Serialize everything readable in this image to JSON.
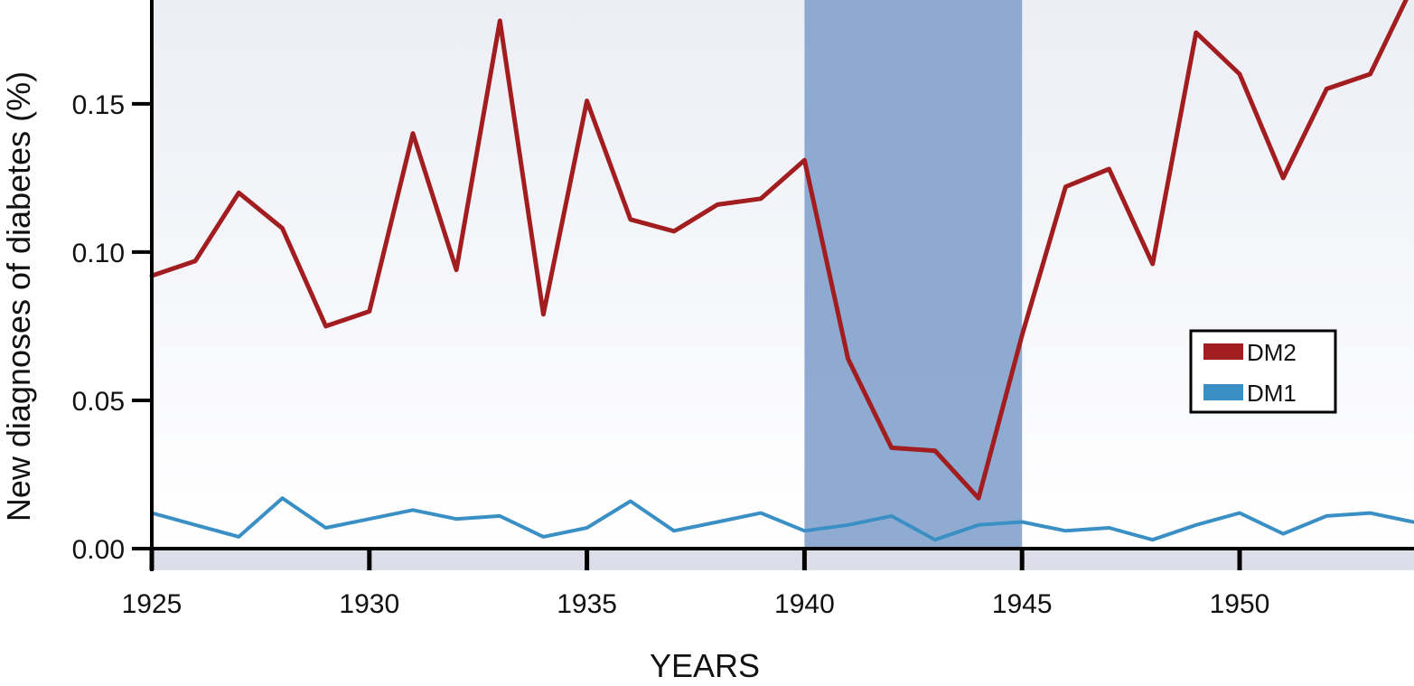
{
  "chart_data": {
    "type": "line",
    "xlabel": "YEARS",
    "ylabel": "New diagnoses of diabetes (%)",
    "xlim": [
      1925,
      1954
    ],
    "ylim": [
      0.0,
      0.185
    ],
    "x_ticks": [
      1925,
      1930,
      1935,
      1940,
      1945,
      1950
    ],
    "x_tick_labels": [
      "1925",
      "1930",
      "1935",
      "1940",
      "1945",
      "1950"
    ],
    "y_ticks": [
      0.0,
      0.05,
      0.1,
      0.15
    ],
    "y_tick_labels": [
      "0.00",
      "0.05",
      "0.10",
      "0.15"
    ],
    "grid": false,
    "legend_position": "right",
    "highlight_region": {
      "x_start": 1940,
      "x_end": 1945,
      "color": "#7c9cc9"
    },
    "series": [
      {
        "name": "DM2",
        "color": "#a21d1f",
        "x": [
          1925,
          1926,
          1927,
          1928,
          1929,
          1930,
          1931,
          1932,
          1933,
          1934,
          1935,
          1936,
          1937,
          1938,
          1939,
          1940,
          1941,
          1942,
          1943,
          1944,
          1945,
          1946,
          1947,
          1948,
          1949,
          1950,
          1951,
          1952,
          1953,
          1954
        ],
        "values": [
          0.092,
          0.097,
          0.12,
          0.108,
          0.075,
          0.08,
          0.14,
          0.094,
          0.178,
          0.079,
          0.151,
          0.111,
          0.107,
          0.116,
          0.118,
          0.131,
          0.064,
          0.034,
          0.033,
          0.017,
          0.072,
          0.122,
          0.128,
          0.096,
          0.174,
          0.16,
          0.125,
          0.155,
          0.16,
          0.19
        ]
      },
      {
        "name": "DM1",
        "color": "#3a8fc4",
        "x": [
          1925,
          1926,
          1927,
          1928,
          1929,
          1930,
          1931,
          1932,
          1933,
          1934,
          1935,
          1936,
          1937,
          1938,
          1939,
          1940,
          1941,
          1942,
          1943,
          1944,
          1945,
          1946,
          1947,
          1948,
          1949,
          1950,
          1951,
          1952,
          1953,
          1954
        ],
        "values": [
          0.012,
          0.008,
          0.004,
          0.017,
          0.007,
          0.01,
          0.013,
          0.01,
          0.011,
          0.004,
          0.007,
          0.016,
          0.006,
          0.009,
          0.012,
          0.006,
          0.008,
          0.011,
          0.003,
          0.008,
          0.009,
          0.006,
          0.007,
          0.003,
          0.008,
          0.012,
          0.005,
          0.011,
          0.012,
          0.009
        ]
      }
    ]
  }
}
